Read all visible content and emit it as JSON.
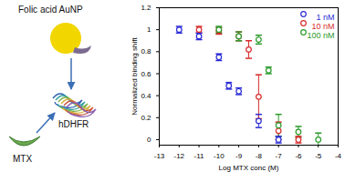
{
  "chart_data": {
    "type": "scatter",
    "xlabel": "Log MTX conc (M)",
    "ylabel": "Normalized binding shift",
    "xlim": [
      -13,
      -4
    ],
    "xticks": [
      -13,
      -12,
      -11,
      -10,
      -9,
      -8,
      -7,
      -6,
      -5,
      -4
    ],
    "ylim": [
      -0.05,
      1.2
    ],
    "yticks": [
      0,
      0.2,
      0.4,
      0.6,
      0.8,
      1,
      1.2
    ],
    "legend": "top-right",
    "marker": "circle",
    "series": [
      {
        "name": "1 nM",
        "color": "#2b2bd6",
        "x": [
          -12,
          -11,
          -10,
          -9.5,
          -9,
          -8,
          -7
        ],
        "values": [
          1.0,
          0.94,
          0.75,
          0.49,
          0.44,
          0.17,
          0.0
        ],
        "errors": [
          0.03,
          0.03,
          0.03,
          0.03,
          0.03,
          0.06,
          0.03
        ]
      },
      {
        "name": "10 nM",
        "color": "#d62b2b",
        "x": [
          -11,
          -10,
          -9,
          -8.5,
          -8,
          -7,
          -6
        ],
        "values": [
          1.0,
          0.99,
          0.94,
          0.82,
          0.39,
          0.08,
          0.0
        ],
        "errors": [
          0.03,
          0.03,
          0.04,
          0.08,
          0.2,
          0.08,
          0.03
        ]
      },
      {
        "name": "100 nM",
        "color": "#2b9a2b",
        "x": [
          -10,
          -9,
          -8,
          -7.5,
          -7,
          -6,
          -5
        ],
        "values": [
          1.0,
          0.94,
          0.91,
          0.63,
          0.13,
          0.07,
          0.0
        ],
        "errors": [
          0.03,
          0.04,
          0.04,
          0.03,
          0.1,
          0.05,
          0.06
        ]
      }
    ]
  },
  "diagram": {
    "nodes": [
      {
        "label": "Folic acid AuNP"
      },
      {
        "label": "MTX"
      },
      {
        "label": "hDHFR"
      }
    ]
  }
}
